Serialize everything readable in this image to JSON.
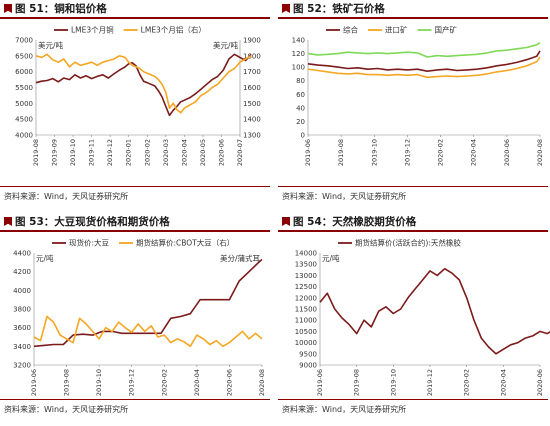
{
  "panels": [
    {
      "title": "图 51：铜和铝价格",
      "source": "资料来源：Wind，天风证券研究所",
      "chart_data": {
        "type": "line",
        "y_unit_left": "美元/吨",
        "y_unit_right": "美元/吨",
        "ylim_left": [
          4000,
          7000
        ],
        "yticks_left": [
          "7000",
          "6500",
          "6000",
          "5500",
          "5000",
          "4500",
          "4000"
        ],
        "ylim_right": [
          1300,
          1900
        ],
        "yticks_right": [
          "1900",
          "1800",
          "1700",
          "1600",
          "1500",
          "1400",
          "1300"
        ],
        "x_ticks": [
          "2019-08",
          "2019-09",
          "2019-10",
          "2019-11",
          "2019-12",
          "2020-01",
          "2020-02",
          "2020-03",
          "2020-04",
          "2020-05",
          "2020-06",
          "2020-07"
        ],
        "grid": false,
        "legend_position": "top",
        "series": [
          {
            "name": "LME3个月铜",
            "axis": "left",
            "color": "#7b1b1b",
            "x": [
              0,
              0.3,
              0.6,
              0.9,
              1.2,
              1.5,
              1.8,
              2.1,
              2.4,
              2.7,
              3,
              3.3,
              3.6,
              3.9,
              4.2,
              4.5,
              4.8,
              5.0,
              5.2,
              5.4,
              5.6,
              5.8,
              6.0,
              6.2,
              6.4,
              6.6,
              6.8,
              7.0,
              7.2,
              7.4,
              7.6,
              7.8,
              8.0,
              8.3,
              8.6,
              8.9,
              9.2,
              9.5,
              9.8,
              10.1,
              10.4,
              10.7,
              11.0,
              11.3,
              11.6
            ],
            "y": [
              5650,
              5700,
              5720,
              5780,
              5680,
              5800,
              5750,
              5900,
              5800,
              5870,
              5780,
              5850,
              5900,
              5800,
              5930,
              6050,
              6150,
              6250,
              6280,
              6180,
              5900,
              5700,
              5650,
              5600,
              5550,
              5400,
              5200,
              4900,
              4620,
              4780,
              4900,
              5050,
              5100,
              5180,
              5300,
              5450,
              5600,
              5750,
              5850,
              6050,
              6400,
              6550,
              6450,
              6350,
              6550
            ]
          },
          {
            "name": "LME3个月铝（右）",
            "axis": "right",
            "color": "#f5a623",
            "x": [
              0,
              0.3,
              0.6,
              0.9,
              1.2,
              1.5,
              1.8,
              2.1,
              2.4,
              2.7,
              3,
              3.3,
              3.6,
              3.9,
              4.2,
              4.5,
              4.8,
              5.0,
              5.2,
              5.4,
              5.6,
              5.8,
              6.0,
              6.2,
              6.4,
              6.6,
              6.8,
              7.0,
              7.2,
              7.4,
              7.6,
              7.8,
              8.0,
              8.3,
              8.6,
              8.9,
              9.2,
              9.5,
              9.8,
              10.1,
              10.4,
              10.7,
              11.0,
              11.3,
              11.6
            ],
            "y": [
              1800,
              1790,
              1810,
              1775,
              1760,
              1780,
              1730,
              1760,
              1740,
              1750,
              1760,
              1740,
              1760,
              1770,
              1780,
              1800,
              1790,
              1760,
              1740,
              1730,
              1720,
              1700,
              1690,
              1680,
              1670,
              1650,
              1620,
              1570,
              1470,
              1500,
              1460,
              1440,
              1470,
              1490,
              1510,
              1550,
              1570,
              1600,
              1620,
              1660,
              1700,
              1720,
              1760,
              1780,
              1800
            ]
          }
        ]
      }
    },
    {
      "title": "图 52：铁矿石价格",
      "source": "资料来源：Wind，天风证券研究所",
      "chart_data": {
        "type": "line",
        "ylim": [
          0,
          140
        ],
        "yticks": [
          "140",
          "120",
          "100",
          "80",
          "60",
          "40",
          "20",
          "0"
        ],
        "x_ticks": [
          "2019-06",
          "2019-08",
          "2019-10",
          "2019-12",
          "2020-02",
          "2020-04",
          "2020-06",
          "2020-08"
        ],
        "grid": false,
        "legend_position": "top",
        "series": [
          {
            "name": "综合",
            "color": "#7b1b1b",
            "x": [
              0,
              0.3,
              0.6,
              0.9,
              1.2,
              1.5,
              1.8,
              2.1,
              2.4,
              2.7,
              3,
              3.3,
              3.6,
              3.9,
              4.2,
              4.5,
              4.8,
              5.1,
              5.4,
              5.7,
              6.0,
              6.3,
              6.6,
              6.9,
              7.0
            ],
            "y": [
              105,
              103,
              102,
              100,
              98,
              99,
              97,
              98,
              96,
              97,
              96,
              97,
              94,
              96,
              97,
              95,
              96,
              97,
              99,
              102,
              104,
              107,
              111,
              116,
              124
            ]
          },
          {
            "name": "进口矿",
            "color": "#f5a623",
            "x": [
              0,
              0.3,
              0.6,
              0.9,
              1.2,
              1.5,
              1.8,
              2.1,
              2.4,
              2.7,
              3,
              3.3,
              3.6,
              3.9,
              4.2,
              4.5,
              4.8,
              5.1,
              5.4,
              5.7,
              6.0,
              6.3,
              6.6,
              6.9,
              7.0
            ],
            "y": [
              97,
              95,
              93,
              91,
              90,
              91,
              89,
              89,
              88,
              89,
              88,
              89,
              85,
              86,
              87,
              86,
              87,
              88,
              90,
              93,
              95,
              98,
              102,
              108,
              115
            ]
          },
          {
            "name": "国产矿",
            "color": "#7ed957",
            "x": [
              0,
              0.3,
              0.6,
              0.9,
              1.2,
              1.5,
              1.8,
              2.1,
              2.4,
              2.7,
              3,
              3.3,
              3.6,
              3.9,
              4.2,
              4.5,
              4.8,
              5.1,
              5.4,
              5.7,
              6.0,
              6.3,
              6.6,
              6.9,
              7.0
            ],
            "y": [
              120,
              118,
              119,
              120,
              122,
              121,
              120,
              121,
              120,
              121,
              122,
              121,
              115,
              117,
              116,
              117,
              118,
              119,
              121,
              124,
              125,
              127,
              129,
              133,
              136
            ]
          }
        ]
      }
    },
    {
      "title": "图 53：大豆现货价格和期货价格",
      "source": "资料来源：Wind，天风证券研究所",
      "chart_data": {
        "type": "line",
        "y_unit_left": "元/吨",
        "y_unit_right": "美分/蒲式耳",
        "ylim": [
          3200,
          4400
        ],
        "yticks": [
          "4400",
          "4200",
          "4000",
          "3800",
          "3600",
          "3400",
          "3200"
        ],
        "x_ticks": [
          "2019-06",
          "2019-08",
          "2019-10",
          "2019-12",
          "2020-02",
          "2020-04",
          "2020-06",
          "2020-08"
        ],
        "grid": false,
        "legend_position": "top",
        "series": [
          {
            "name": "现货价:大豆",
            "axis": "left",
            "color": "#7b1b1b",
            "x": [
              0,
              0.3,
              0.6,
              0.9,
              1.2,
              1.5,
              1.8,
              2.1,
              2.4,
              2.7,
              3,
              3.3,
              3.6,
              3.9,
              4.2,
              4.5,
              4.8,
              5.1,
              5.4,
              5.7,
              6.0,
              6.3,
              6.6,
              6.9,
              7.0
            ],
            "y": [
              3400,
              3410,
              3420,
              3420,
              3520,
              3530,
              3520,
              3560,
              3560,
              3540,
              3540,
              3540,
              3540,
              3540,
              3700,
              3720,
              3750,
              3900,
              3900,
              3900,
              3900,
              4100,
              4200,
              4300,
              4330
            ]
          },
          {
            "name": "期货结算价:CBOT大豆（右）",
            "axis": "right",
            "color": "#f5a623",
            "x": [
              0,
              0.2,
              0.4,
              0.6,
              0.8,
              1.0,
              1.2,
              1.4,
              1.6,
              1.8,
              2.0,
              2.2,
              2.4,
              2.6,
              2.8,
              3.0,
              3.2,
              3.4,
              3.6,
              3.8,
              4.0,
              4.2,
              4.4,
              4.6,
              4.8,
              5.0,
              5.2,
              5.4,
              5.6,
              5.8,
              6.0,
              6.2,
              6.4,
              6.6,
              6.8,
              7.0
            ],
            "y": [
              3500,
              3460,
              3720,
              3660,
              3520,
              3480,
              3440,
              3700,
              3640,
              3560,
              3480,
              3600,
              3560,
              3660,
              3600,
              3550,
              3640,
              3560,
              3620,
              3500,
              3520,
              3440,
              3480,
              3450,
              3400,
              3520,
              3480,
              3420,
              3460,
              3400,
              3440,
              3500,
              3560,
              3480,
              3540,
              3480
            ]
          }
        ]
      }
    },
    {
      "title": "图 54：天然橡胶期货价格",
      "source": "资料来源：Wind，天风证券研究所",
      "chart_data": {
        "type": "line",
        "y_unit_left": "元/吨",
        "ylim": [
          9000,
          14000
        ],
        "yticks": [
          "14000",
          "13500",
          "13000",
          "12500",
          "12000",
          "11500",
          "11000",
          "10500",
          "10000",
          "9500",
          "9000"
        ],
        "x_ticks": [
          "2019-06",
          "2019-08",
          "2019-10",
          "2019-12",
          "2020-02",
          "2020-04",
          "2020-06"
        ],
        "grid": false,
        "legend_position": "top",
        "series": [
          {
            "name": "期货结算价(活跃合约):天然橡胶",
            "color": "#7b1b1b",
            "x": [
              0,
              0.2,
              0.4,
              0.6,
              0.8,
              1.0,
              1.2,
              1.4,
              1.6,
              1.8,
              2.0,
              2.2,
              2.4,
              2.6,
              2.8,
              3.0,
              3.2,
              3.4,
              3.6,
              3.8,
              4.0,
              4.2,
              4.4,
              4.6,
              4.8,
              5.0,
              5.2,
              5.4,
              5.6,
              5.8,
              6.0,
              6.2,
              6.4,
              6.6,
              6.8
            ],
            "y": [
              11800,
              12200,
              11500,
              11100,
              10800,
              10400,
              11000,
              10700,
              11400,
              11600,
              11300,
              11500,
              12000,
              12400,
              12800,
              13200,
              13000,
              13300,
              13100,
              12800,
              12000,
              11000,
              10200,
              9800,
              9500,
              9700,
              9900,
              10000,
              10200,
              10300,
              10500,
              10400,
              10600,
              10300,
              10700
            ]
          }
        ]
      }
    }
  ]
}
